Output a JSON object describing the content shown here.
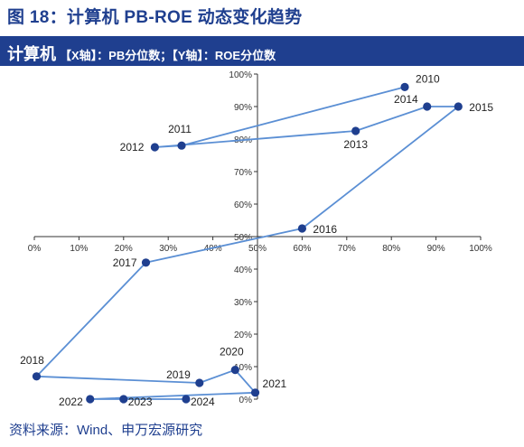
{
  "figure_title": "图 18：计算机 PB-ROE 动态变化趋势",
  "banner": {
    "main": "计算机",
    "sub": "【X轴】：PB分位数；【Y轴】：ROE分位数"
  },
  "source": "资料来源：Wind、申万宏源研究",
  "colors": {
    "brand": "#1f3f8f",
    "series_line": "#5b8fd4",
    "marker": "#1f3f8f",
    "axis": "#333333"
  },
  "chart_data": {
    "type": "scatter",
    "connected": true,
    "xlim": [
      0,
      100
    ],
    "ylim": [
      0,
      100
    ],
    "x_ticks": [
      "0%",
      "10%",
      "20%",
      "30%",
      "40%",
      "50%",
      "60%",
      "70%",
      "80%",
      "90%",
      "100%"
    ],
    "y_ticks": [
      "0%",
      "10%",
      "20%",
      "30%",
      "40%",
      "50%",
      "60%",
      "70%",
      "80%",
      "90%",
      "100%"
    ],
    "axes_cross_at": [
      50,
      50
    ],
    "grid": false,
    "points": [
      {
        "label": "2010",
        "x": 83,
        "y": 96
      },
      {
        "label": "2011",
        "x": 33,
        "y": 78
      },
      {
        "label": "2012",
        "x": 27,
        "y": 77.5
      },
      {
        "label": "2013",
        "x": 72,
        "y": 82.5
      },
      {
        "label": "2014",
        "x": 88,
        "y": 90
      },
      {
        "label": "2015",
        "x": 95,
        "y": 90
      },
      {
        "label": "2016",
        "x": 60,
        "y": 52.5
      },
      {
        "label": "2017",
        "x": 25,
        "y": 42
      },
      {
        "label": "2018",
        "x": 0.5,
        "y": 7
      },
      {
        "label": "2019",
        "x": 37,
        "y": 5
      },
      {
        "label": "2020",
        "x": 45,
        "y": 9
      },
      {
        "label": "2021",
        "x": 49.5,
        "y": 2
      },
      {
        "label": "2022",
        "x": 12.5,
        "y": 0
      },
      {
        "label": "2023",
        "x": 20,
        "y": 0
      },
      {
        "label": "2024",
        "x": 34,
        "y": 0
      }
    ]
  }
}
